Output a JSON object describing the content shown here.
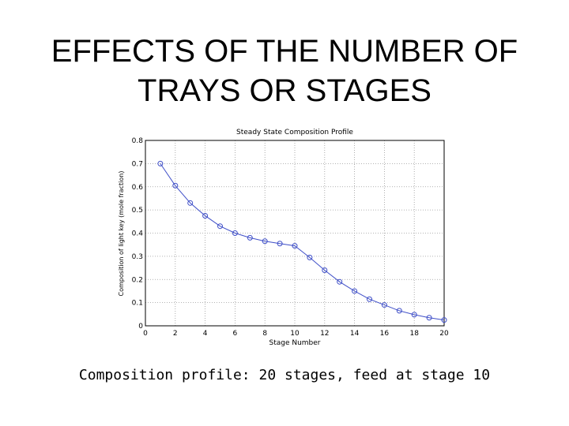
{
  "slide": {
    "title_line1": "EFFECTS OF THE NUMBER OF",
    "title_line2": "TRAYS OR STAGES",
    "caption": "Composition profile: 20 stages, feed at stage 10"
  },
  "colors": {
    "series": "#3f4fc8",
    "grid": "#9a9a9a",
    "axis": "#000000"
  },
  "chart_data": {
    "type": "line",
    "title": "Steady State Composition Profile",
    "xlabel": "Stage Number",
    "ylabel": "Composition of light key (mole fraction)",
    "xlim": [
      0,
      20
    ],
    "ylim": [
      0,
      0.8
    ],
    "xticks": [
      0,
      2,
      4,
      6,
      8,
      10,
      12,
      14,
      16,
      18,
      20
    ],
    "yticks": [
      0,
      0.1,
      0.2,
      0.3,
      0.4,
      0.5,
      0.6,
      0.7,
      0.8
    ],
    "xtick_labels": [
      "0",
      "2",
      "4",
      "6",
      "8",
      "10",
      "12",
      "14",
      "16",
      "18",
      "20"
    ],
    "ytick_labels": [
      "0",
      "0.1",
      "0.2",
      "0.3",
      "0.4",
      "0.5",
      "0.6",
      "0.7",
      "0.8"
    ],
    "grid": true,
    "markers": "open-circle",
    "series": [
      {
        "x": [
          1,
          2,
          3,
          4,
          5,
          6,
          7,
          8,
          9,
          10,
          11,
          12,
          13,
          14,
          15,
          16,
          17,
          18,
          19,
          20
        ],
        "values": [
          0.7,
          0.605,
          0.53,
          0.475,
          0.43,
          0.4,
          0.38,
          0.365,
          0.355,
          0.345,
          0.295,
          0.24,
          0.19,
          0.15,
          0.115,
          0.09,
          0.065,
          0.048,
          0.035,
          0.025
        ]
      }
    ]
  }
}
